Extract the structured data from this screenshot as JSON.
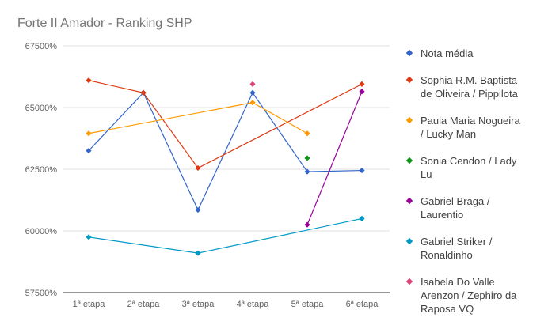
{
  "chart_data": {
    "type": "line",
    "title": "Forte II Amador - Ranking SHP",
    "xlabel": "",
    "ylabel": "",
    "categories": [
      "1ª etapa",
      "2ª etapa",
      "3ª etapa",
      "4ª etapa",
      "5ª etapa",
      "6ª etapa"
    ],
    "y_ticks": [
      {
        "value": 57500,
        "label": "57500%"
      },
      {
        "value": 60000,
        "label": "60000%"
      },
      {
        "value": 62500,
        "label": "62500%"
      },
      {
        "value": 65000,
        "label": "65000%"
      },
      {
        "value": 67500,
        "label": "67500%"
      }
    ],
    "ylim": [
      57500,
      67500
    ],
    "grid": true,
    "legend_position": "right",
    "series": [
      {
        "name": "Nota média",
        "legend_lines": [
          "Nota média"
        ],
        "color": "#3366cc",
        "values": [
          63250,
          65600,
          60850,
          65600,
          62400,
          62450
        ]
      },
      {
        "name": "Sophia R.M. Baptista de Oliveira / Pippilota",
        "legend_lines": [
          "Sophia R.M. Baptista",
          "de Oliveira / Pippilota"
        ],
        "color": "#dc3912",
        "values": [
          66100,
          65600,
          62550,
          null,
          null,
          65950
        ]
      },
      {
        "name": "Paula Maria Nogueira / Lucky Man",
        "legend_lines": [
          "Paula Maria Nogueira",
          "/ Lucky Man"
        ],
        "color": "#ff9900",
        "values": [
          63950,
          null,
          null,
          65200,
          63950,
          null
        ]
      },
      {
        "name": "Sonia Cendon / Lady Lu",
        "legend_lines": [
          "Sonia Cendon / Lady",
          "Lu"
        ],
        "color": "#109618",
        "values": [
          null,
          null,
          null,
          null,
          62950,
          null
        ]
      },
      {
        "name": "Gabriel Braga / Laurentio",
        "legend_lines": [
          "Gabriel Braga /",
          "Laurentio"
        ],
        "color": "#990099",
        "values": [
          null,
          null,
          null,
          null,
          60250,
          65650
        ]
      },
      {
        "name": " Gabriel Striker / Ronaldinho",
        "legend_lines": [
          " Gabriel Striker /",
          "Ronaldinho"
        ],
        "color": "#0099c6",
        "values": [
          59750,
          null,
          59100,
          null,
          null,
          60500
        ]
      },
      {
        "name": "Isabela Do Valle Arenzon / Zephiro da Raposa VQ",
        "legend_lines": [
          "Isabela Do Valle",
          "Arenzon / Zephiro da",
          "Raposa VQ"
        ],
        "color": "#dd4477",
        "values": [
          null,
          null,
          null,
          65950,
          null,
          null
        ]
      }
    ]
  }
}
